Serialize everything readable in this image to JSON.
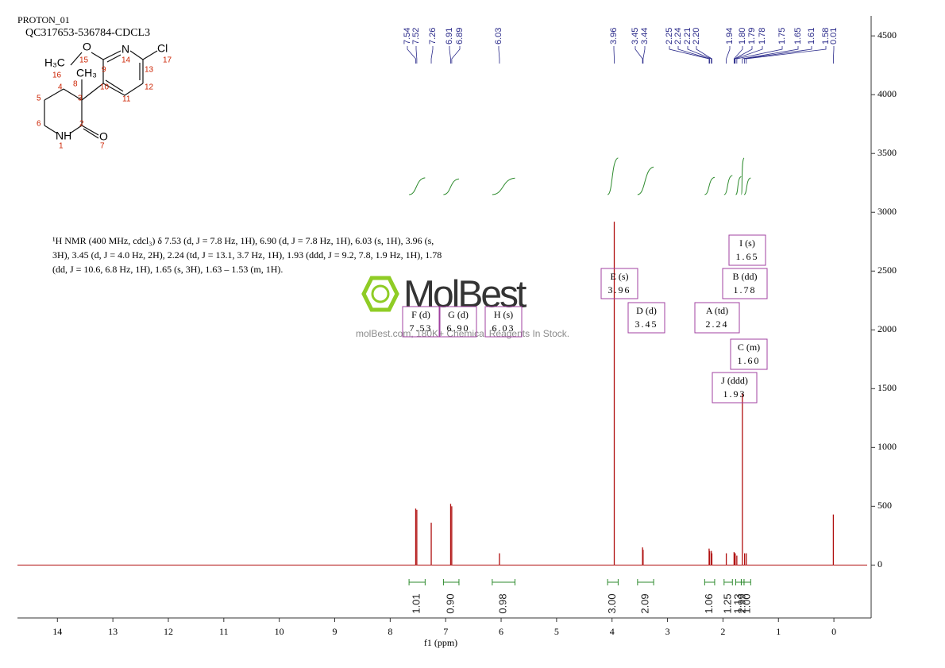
{
  "header": {
    "title": "PROTON_01",
    "sample": "QC317653-536784-CDCL3"
  },
  "structure": {
    "atom_labels": [
      "H₃C",
      "O",
      "N",
      "Cl",
      "CH₃",
      "NH",
      "O"
    ],
    "atom_numbers": [
      "16",
      "15",
      "9",
      "14",
      "13",
      "17",
      "8",
      "3",
      "4",
      "5",
      "10",
      "11",
      "12",
      "6",
      "2",
      "1",
      "7"
    ]
  },
  "description": [
    "¹H NMR (400 MHz, cdcl₃) δ 7.53 (d, J = 7.8 Hz, 1H), 6.90 (d, J = 7.8 Hz, 1H), 6.03 (s, 1H), 3.96 (s,",
    "3H), 3.45 (d, J = 4.0 Hz, 2H), 2.24 (td, J = 13.1, 3.7 Hz, 1H), 1.93 (ddd, J = 9.2, 7.8, 1.9 Hz, 1H), 1.78",
    "(dd, J = 10.6, 6.8 Hz, 1H), 1.65 (s, 3H), 1.63 – 1.53 (m, 1H)."
  ],
  "watermark": {
    "brand": "MolBest",
    "tagline": "molBest.com, 180K+ Chemical Reagents In Stock."
  },
  "chart_data": {
    "type": "nmr",
    "x_label": "f1  (ppm)",
    "xlim": [
      14.72,
      -0.6
    ],
    "xticks": [
      14,
      13,
      12,
      11,
      10,
      9,
      8,
      7,
      6,
      5,
      4,
      3,
      2,
      1,
      0
    ],
    "ylim": [
      -450,
      4670
    ],
    "yticks": [
      0,
      500,
      1000,
      1500,
      2000,
      2500,
      3000,
      3500,
      4000,
      4500
    ],
    "color": "#b01010",
    "peaks": {
      "x": [
        7.54,
        7.52,
        7.26,
        6.91,
        6.89,
        6.03,
        3.96,
        3.45,
        3.44,
        2.25,
        2.24,
        2.21,
        2.2,
        1.94,
        1.8,
        1.79,
        1.78,
        1.75,
        1.65,
        1.61,
        1.58,
        0.01
      ],
      "x_labels": [
        "7.54",
        "7.52",
        "7.26",
        "6.91",
        "6.89",
        "6.03",
        "3.96",
        "3.45",
        "3.44",
        "2.25",
        "2.24",
        "2.21",
        "2.20",
        "1.94",
        "1.80",
        "1.79",
        "1.78",
        "1.75",
        "1.65",
        "1.61",
        "1.58",
        "0.01"
      ],
      "values": [
        480,
        470,
        360,
        520,
        500,
        100,
        2920,
        150,
        130,
        140,
        120,
        120,
        100,
        100,
        110,
        100,
        100,
        80,
        1460,
        100,
        100,
        430
      ]
    },
    "integrals": {
      "color": "#2e8b2e",
      "ranges": [
        [
          7.66,
          7.37
        ],
        [
          7.04,
          6.76
        ],
        [
          6.16,
          5.75
        ],
        [
          4.08,
          3.89
        ],
        [
          3.54,
          3.25
        ],
        [
          2.33,
          2.15
        ],
        [
          1.98,
          1.83
        ],
        [
          1.77,
          1.67
        ],
        [
          1.67,
          1.62
        ],
        [
          1.62,
          1.5
        ]
      ],
      "values": [
        1.01,
        0.9,
        0.98,
        3,
        2.09,
        1.06,
        1.25,
        1.13,
        2.99,
        1
      ],
      "value_labels": [
        "1.01",
        "0.90",
        "0.98",
        "3.00",
        "2.09",
        "1.06",
        "1.25",
        "1.13",
        "2.99",
        "1.00"
      ]
    },
    "multiplets": [
      {
        "label": "F (d)",
        "shift": "7.53"
      },
      {
        "label": "G (d)",
        "shift": "6.90"
      },
      {
        "label": "H (s)",
        "shift": "6.03"
      },
      {
        "label": "E (s)",
        "shift": "3.96"
      },
      {
        "label": "D (d)",
        "shift": "3.45"
      },
      {
        "label": "A (td)",
        "shift": "2.24"
      },
      {
        "label": "I (s)",
        "shift": "1.65"
      },
      {
        "label": "B (dd)",
        "shift": "1.78"
      },
      {
        "label": "C (m)",
        "shift": "1.60"
      },
      {
        "label": "J (ddd)",
        "shift": "1.93"
      }
    ]
  }
}
